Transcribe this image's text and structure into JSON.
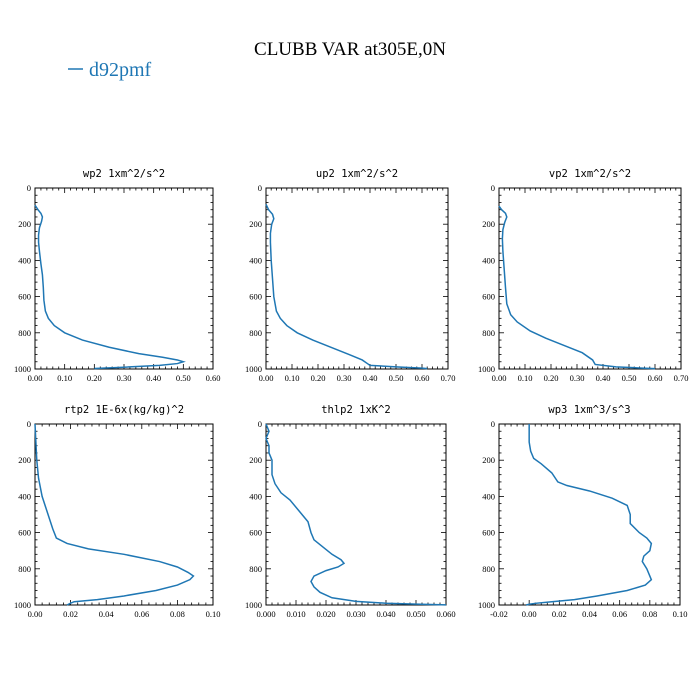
{
  "title": "CLUBB VAR at305E,0N",
  "legend": {
    "series_name": "d92pmf",
    "color": "#1f77b4"
  },
  "chart_data": [
    {
      "type": "line",
      "title": "wp2  1xm^2/s^2",
      "xlim": [
        0.0,
        0.6
      ],
      "xticks": [
        "0.00",
        "0.10",
        "0.20",
        "0.30",
        "0.40",
        "0.50",
        "0.60"
      ],
      "ylim": [
        0,
        1000
      ],
      "yticks": [
        "0",
        "200",
        "400",
        "600",
        "800",
        "1000"
      ],
      "y_inverted": true,
      "series": [
        {
          "name": "d92pmf",
          "points": [
            [
              0.0,
              95
            ],
            [
              0.01,
              120
            ],
            [
              0.02,
              140
            ],
            [
              0.025,
              160
            ],
            [
              0.022,
              185
            ],
            [
              0.015,
              220
            ],
            [
              0.012,
              260
            ],
            [
              0.012,
              300
            ],
            [
              0.015,
              350
            ],
            [
              0.02,
              420
            ],
            [
              0.025,
              480
            ],
            [
              0.028,
              550
            ],
            [
              0.03,
              620
            ],
            [
              0.035,
              680
            ],
            [
              0.045,
              720
            ],
            [
              0.065,
              760
            ],
            [
              0.1,
              800
            ],
            [
              0.16,
              840
            ],
            [
              0.25,
              880
            ],
            [
              0.35,
              915
            ],
            [
              0.43,
              935
            ],
            [
              0.48,
              950
            ],
            [
              0.5,
              960
            ],
            [
              0.48,
              970
            ],
            [
              0.42,
              980
            ],
            [
              0.3,
              990
            ],
            [
              0.2,
              997
            ]
          ]
        }
      ]
    },
    {
      "type": "line",
      "title": "up2  1xm^2/s^2",
      "xlim": [
        0.0,
        0.7
      ],
      "xticks": [
        "0.00",
        "0.10",
        "0.20",
        "0.30",
        "0.40",
        "0.50",
        "0.60",
        "0.70"
      ],
      "ylim": [
        0,
        1000
      ],
      "yticks": [
        "0",
        "200",
        "400",
        "600",
        "800",
        "1000"
      ],
      "y_inverted": true,
      "series": [
        {
          "name": "d92pmf",
          "points": [
            [
              0.0,
              90
            ],
            [
              0.01,
              120
            ],
            [
              0.025,
              145
            ],
            [
              0.03,
              170
            ],
            [
              0.022,
              200
            ],
            [
              0.017,
              250
            ],
            [
              0.017,
              300
            ],
            [
              0.02,
              400
            ],
            [
              0.025,
              500
            ],
            [
              0.03,
              600
            ],
            [
              0.04,
              680
            ],
            [
              0.055,
              720
            ],
            [
              0.08,
              760
            ],
            [
              0.12,
              800
            ],
            [
              0.18,
              840
            ],
            [
              0.25,
              880
            ],
            [
              0.32,
              920
            ],
            [
              0.37,
              950
            ],
            [
              0.39,
              970
            ],
            [
              0.4,
              980
            ],
            [
              0.5,
              988
            ],
            [
              0.6,
              995
            ],
            [
              0.62,
              998
            ]
          ]
        }
      ]
    },
    {
      "type": "line",
      "title": "vp2  1xm^2/s^2",
      "xlim": [
        0.0,
        0.7
      ],
      "xticks": [
        "0.00",
        "0.10",
        "0.20",
        "0.30",
        "0.40",
        "0.50",
        "0.60",
        "0.70"
      ],
      "ylim": [
        0,
        1000
      ],
      "yticks": [
        "0",
        "200",
        "400",
        "600",
        "800",
        "1000"
      ],
      "y_inverted": true,
      "series": [
        {
          "name": "d92pmf",
          "points": [
            [
              0.0,
              100
            ],
            [
              0.01,
              120
            ],
            [
              0.025,
              140
            ],
            [
              0.03,
              160
            ],
            [
              0.022,
              190
            ],
            [
              0.015,
              230
            ],
            [
              0.013,
              280
            ],
            [
              0.015,
              350
            ],
            [
              0.02,
              450
            ],
            [
              0.025,
              550
            ],
            [
              0.03,
              640
            ],
            [
              0.045,
              700
            ],
            [
              0.07,
              740
            ],
            [
              0.12,
              790
            ],
            [
              0.18,
              830
            ],
            [
              0.25,
              870
            ],
            [
              0.32,
              910
            ],
            [
              0.36,
              950
            ],
            [
              0.37,
              975
            ],
            [
              0.45,
              988
            ],
            [
              0.55,
              995
            ],
            [
              0.6,
              998
            ]
          ]
        }
      ]
    },
    {
      "type": "line",
      "title": "rtp2  1E-6x(kg/kg)^2",
      "xlim": [
        0.0,
        0.1
      ],
      "xticks": [
        "0.00",
        "0.02",
        "0.04",
        "0.06",
        "0.08",
        "0.10"
      ],
      "ylim": [
        0,
        1000
      ],
      "yticks": [
        "0",
        "200",
        "400",
        "600",
        "800",
        "1000"
      ],
      "y_inverted": true,
      "series": [
        {
          "name": "d92pmf",
          "points": [
            [
              0.0,
              0
            ],
            [
              0.0005,
              100
            ],
            [
              0.001,
              200
            ],
            [
              0.002,
              300
            ],
            [
              0.004,
              400
            ],
            [
              0.006,
              460
            ],
            [
              0.008,
              520
            ],
            [
              0.01,
              580
            ],
            [
              0.012,
              630
            ],
            [
              0.018,
              660
            ],
            [
              0.03,
              690
            ],
            [
              0.05,
              720
            ],
            [
              0.07,
              760
            ],
            [
              0.08,
              790
            ],
            [
              0.086,
              820
            ],
            [
              0.089,
              840
            ],
            [
              0.087,
              860
            ],
            [
              0.08,
              890
            ],
            [
              0.068,
              920
            ],
            [
              0.05,
              950
            ],
            [
              0.035,
              970
            ],
            [
              0.022,
              982
            ],
            [
              0.02,
              990
            ],
            [
              0.018,
              1000
            ]
          ]
        }
      ]
    },
    {
      "type": "line",
      "title": "thlp2  1xK^2",
      "xlim": [
        0.0,
        0.06
      ],
      "xticks": [
        "0.000",
        "0.010",
        "0.020",
        "0.030",
        "0.040",
        "0.050",
        "0.060"
      ],
      "ylim": [
        0,
        1000
      ],
      "yticks": [
        "0",
        "200",
        "400",
        "600",
        "800",
        "1000"
      ],
      "y_inverted": true,
      "series": [
        {
          "name": "d92pmf",
          "points": [
            [
              0.0,
              0
            ],
            [
              0.001,
              40
            ],
            [
              0.0,
              80
            ],
            [
              0.001,
              120
            ],
            [
              0.001,
              160
            ],
            [
              0.002,
              200
            ],
            [
              0.002,
              280
            ],
            [
              0.003,
              330
            ],
            [
              0.005,
              380
            ],
            [
              0.008,
              420
            ],
            [
              0.011,
              480
            ],
            [
              0.014,
              540
            ],
            [
              0.015,
              600
            ],
            [
              0.016,
              640
            ],
            [
              0.019,
              680
            ],
            [
              0.022,
              720
            ],
            [
              0.025,
              750
            ],
            [
              0.026,
              770
            ],
            [
              0.024,
              790
            ],
            [
              0.02,
              810
            ],
            [
              0.016,
              840
            ],
            [
              0.015,
              870
            ],
            [
              0.016,
              900
            ],
            [
              0.018,
              930
            ],
            [
              0.022,
              960
            ],
            [
              0.03,
              980
            ],
            [
              0.04,
              990
            ],
            [
              0.05,
              995
            ],
            [
              0.06,
              999
            ]
          ]
        }
      ]
    },
    {
      "type": "line",
      "title": "wp3  1xm^3/s^3",
      "xlim": [
        -0.02,
        0.1
      ],
      "xticks": [
        "-0.02",
        "0.00",
        "0.02",
        "0.04",
        "0.06",
        "0.08",
        "0.10"
      ],
      "ylim": [
        0,
        1000
      ],
      "yticks": [
        "0",
        "200",
        "400",
        "600",
        "800",
        "1000"
      ],
      "y_inverted": true,
      "series": [
        {
          "name": "d92pmf",
          "points": [
            [
              0.0,
              0
            ],
            [
              0.0,
              100
            ],
            [
              0.001,
              150
            ],
            [
              0.003,
              190
            ],
            [
              0.008,
              220
            ],
            [
              0.015,
              270
            ],
            [
              0.019,
              320
            ],
            [
              0.025,
              340
            ],
            [
              0.04,
              370
            ],
            [
              0.055,
              410
            ],
            [
              0.065,
              450
            ],
            [
              0.067,
              500
            ],
            [
              0.067,
              550
            ],
            [
              0.073,
              600
            ],
            [
              0.078,
              630
            ],
            [
              0.081,
              660
            ],
            [
              0.08,
              700
            ],
            [
              0.076,
              730
            ],
            [
              0.075,
              760
            ],
            [
              0.078,
              800
            ],
            [
              0.08,
              840
            ],
            [
              0.081,
              860
            ],
            [
              0.077,
              890
            ],
            [
              0.065,
              920
            ],
            [
              0.045,
              950
            ],
            [
              0.03,
              970
            ],
            [
              0.015,
              982
            ],
            [
              0.005,
              990
            ],
            [
              0.0,
              996
            ],
            [
              -0.002,
              1000
            ]
          ]
        }
      ]
    }
  ]
}
